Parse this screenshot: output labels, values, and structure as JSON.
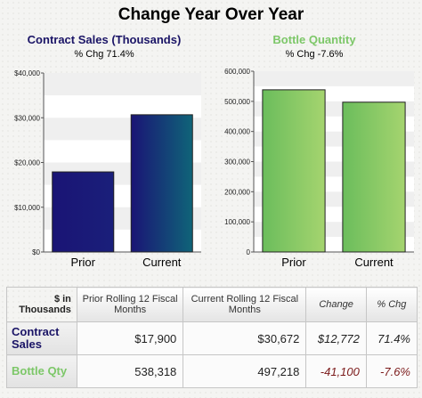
{
  "title": "Change Year Over Year",
  "charts": [
    {
      "title": "Contract Sales (Thousands)",
      "subtitle": "% Chg 71.4%",
      "title_color": "#1a1466",
      "categories": [
        "Prior",
        "Current"
      ],
      "values": [
        17900,
        30672
      ],
      "y_ticks": [
        "$0",
        "$10,000",
        "$20,000",
        "$30,000",
        "$40,000"
      ],
      "ylim": [
        0,
        40000
      ],
      "bar_colors": [
        "#1a1575",
        "#0f5a7a"
      ]
    },
    {
      "title": "Bottle Quantity",
      "subtitle": "% Chg -7.6%",
      "title_color": "#7cc768",
      "categories": [
        "Prior",
        "Current"
      ],
      "values": [
        538318,
        497218
      ],
      "y_ticks": [
        "0",
        "100,000",
        "200,000",
        "300,000",
        "400,000",
        "500,000",
        "600,000"
      ],
      "ylim": [
        0,
        600000
      ],
      "bar_colors": [
        "#6ebf5a",
        "#a3d36e"
      ]
    }
  ],
  "chart_data": [
    {
      "type": "bar",
      "title": "Contract Sales (Thousands)",
      "subtitle": "% Chg 71.4%",
      "categories": [
        "Prior",
        "Current"
      ],
      "values": [
        17900,
        30672
      ],
      "ylim": [
        0,
        40000
      ],
      "xlabel": "",
      "ylabel": ""
    },
    {
      "type": "bar",
      "title": "Bottle Quantity",
      "subtitle": "% Chg -7.6%",
      "categories": [
        "Prior",
        "Current"
      ],
      "values": [
        538318,
        497218
      ],
      "ylim": [
        0,
        600000
      ],
      "xlabel": "",
      "ylabel": ""
    }
  ],
  "table": {
    "corner_header": "$ in Thousands",
    "headers": [
      "Prior Rolling 12 Fiscal Months",
      "Current Rolling 12 Fiscal Months",
      "Change",
      "% Chg"
    ],
    "rows": [
      {
        "label": "Contract Sales",
        "label_color": "#1a1466",
        "prior": "$17,900",
        "current": "$30,672",
        "change": "$12,772",
        "pct": "71.4%"
      },
      {
        "label": "Bottle Qty",
        "label_color": "#7cc768",
        "prior": "538,318",
        "current": "497,218",
        "change": "-41,100",
        "pct": "-7.6%"
      }
    ]
  }
}
